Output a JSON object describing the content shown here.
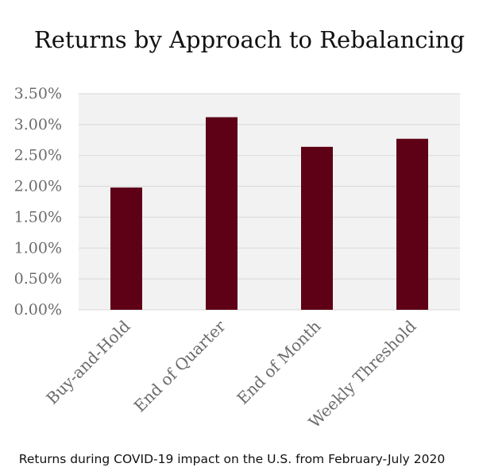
{
  "chart_data": {
    "type": "bar",
    "title": "Returns by Approach to Rebalancing",
    "categories": [
      "Buy-and-Hold",
      "End of Quarter",
      "End of Month",
      "Weekly Threshold"
    ],
    "values": [
      1.98,
      3.12,
      2.64,
      2.77
    ],
    "y_ticks": [
      "0.00%",
      "0.50%",
      "1.00%",
      "1.50%",
      "2.00%",
      "2.50%",
      "3.00%",
      "3.50%"
    ],
    "ylim": [
      0,
      3.5
    ],
    "grid": true,
    "legend": "none",
    "colors": {
      "bar": "#5e0016",
      "plot_background": "#f2f2f2",
      "gridline": "#d9d9d9",
      "tick_text": "#6b6b6b"
    },
    "caption": "Returns during COVID-19 impact on the U.S. from February-July 2020"
  }
}
